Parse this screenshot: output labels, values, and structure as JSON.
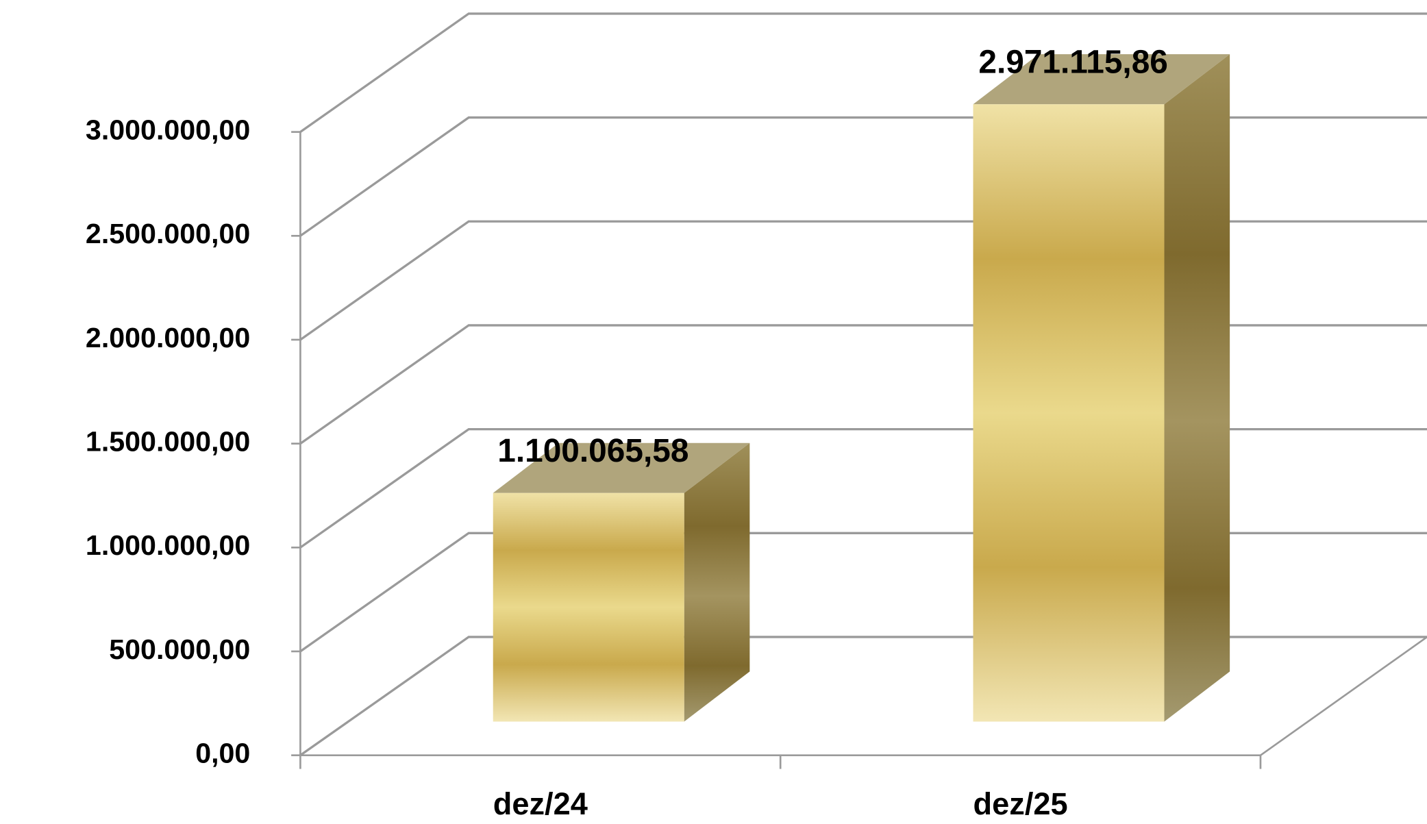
{
  "chart_data": {
    "type": "bar3d",
    "categories": [
      "dez/24",
      "dez/25"
    ],
    "values": [
      1100065.58,
      2971115.86
    ],
    "value_labels": [
      "1.100.065,58",
      "2.971.115,86"
    ],
    "ylim": [
      0,
      3000000
    ],
    "yticks": [
      {
        "value": 0,
        "label": "0,00"
      },
      {
        "value": 500000,
        "label": "500.000,00"
      },
      {
        "value": 1000000,
        "label": "1.000.000,00"
      },
      {
        "value": 1500000,
        "label": "1.500.000,00"
      },
      {
        "value": 2000000,
        "label": "2.000.000,00"
      },
      {
        "value": 2500000,
        "label": "2.500.000,00"
      },
      {
        "value": 3000000,
        "label": "3.000.000,00"
      }
    ],
    "grid": true,
    "color": "#c8a848"
  }
}
